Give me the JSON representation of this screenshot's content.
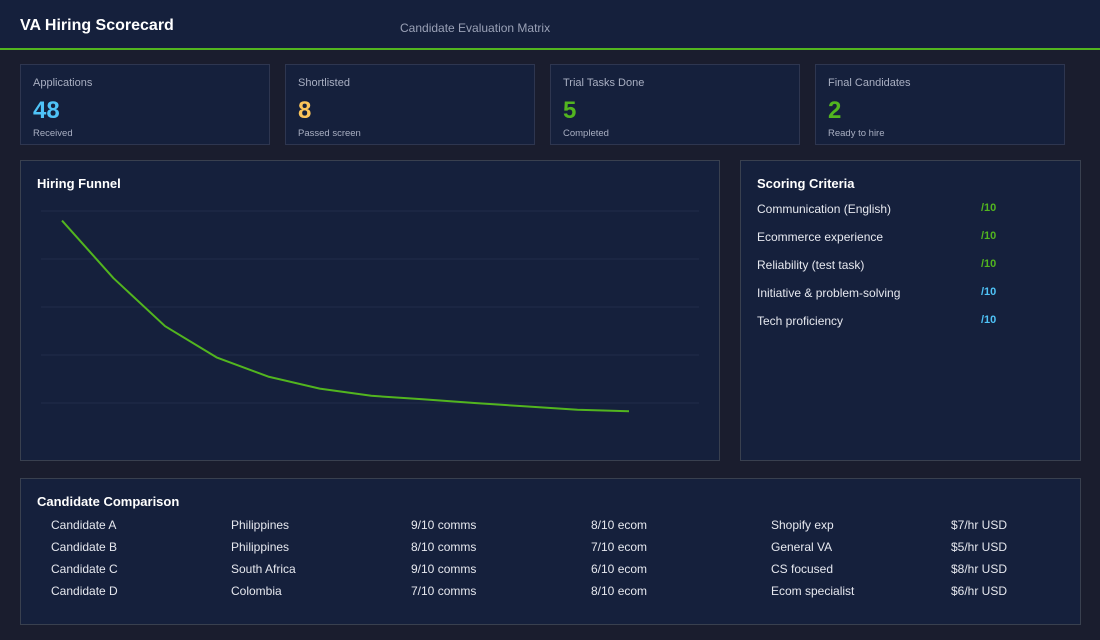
{
  "header": {
    "title": "VA Hiring Scorecard",
    "subtitle": "Candidate Evaluation Matrix"
  },
  "colors": {
    "accent_green": "#52b51f",
    "blue": "#4fc3f7",
    "yellow": "#fbc45a",
    "panel_bg": "#15203c",
    "page_bg": "#1a1d2e"
  },
  "kpis": [
    {
      "label": "Applications",
      "value": "48",
      "sub": "Received",
      "color": "#4fc3f7"
    },
    {
      "label": "Shortlisted",
      "value": "8",
      "sub": "Passed screen",
      "color": "#fbc45a"
    },
    {
      "label": "Trial Tasks Done",
      "value": "5",
      "sub": "Completed",
      "color": "#52b51f"
    },
    {
      "label": "Final Candidates",
      "value": "2",
      "sub": "Ready to hire",
      "color": "#52b51f"
    }
  ],
  "funnel": {
    "title": "Hiring Funnel"
  },
  "chart_data": {
    "type": "line",
    "title": "Hiring Funnel",
    "x": [
      1,
      2,
      3,
      4,
      5,
      6,
      7,
      8,
      9,
      10,
      11,
      12
    ],
    "series": [
      {
        "values": [
          48,
          36,
          26,
          19.5,
          15.5,
          13,
          11.5,
          10.8,
          10,
          9.3,
          8.6,
          8.3
        ]
      }
    ],
    "ylim": [
      0,
      50
    ],
    "grid": true,
    "legend": "none",
    "line_color": "#52b51f"
  },
  "criteria": {
    "title": "Scoring Criteria",
    "items": [
      {
        "label": "Communication (English)",
        "score": "/10",
        "color": "#52b51f"
      },
      {
        "label": "Ecommerce experience",
        "score": "/10",
        "color": "#52b51f"
      },
      {
        "label": "Reliability (test task)",
        "score": "/10",
        "color": "#52b51f"
      },
      {
        "label": "Initiative & problem-solving",
        "score": "/10",
        "color": "#4fc3f7"
      },
      {
        "label": "Tech proficiency",
        "score": "/10",
        "color": "#4fc3f7"
      }
    ]
  },
  "comparison": {
    "title": "Candidate Comparison",
    "rows": [
      {
        "name": "Candidate A",
        "country": "Philippines",
        "comms": "9/10 comms",
        "ecom": "8/10 ecom",
        "focus": "Shopify exp",
        "rate": "$7/hr USD"
      },
      {
        "name": "Candidate B",
        "country": "Philippines",
        "comms": "8/10 comms",
        "ecom": "7/10 ecom",
        "focus": "General VA",
        "rate": "$5/hr USD"
      },
      {
        "name": "Candidate C",
        "country": "South Africa",
        "comms": "9/10 comms",
        "ecom": "6/10 ecom",
        "focus": "CS focused",
        "rate": "$8/hr USD"
      },
      {
        "name": "Candidate D",
        "country": "Colombia",
        "comms": "7/10 comms",
        "ecom": "8/10 ecom",
        "focus": "Ecom specialist",
        "rate": "$6/hr USD"
      }
    ]
  }
}
